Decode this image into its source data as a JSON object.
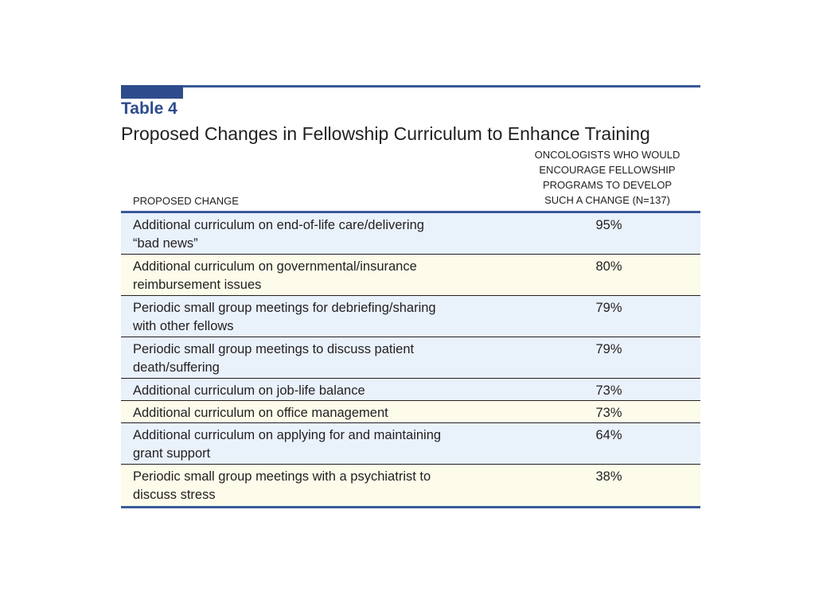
{
  "table": {
    "number": "Table 4",
    "title": "Proposed Changes in Fellowship Curriculum to Enhance Training",
    "columns": {
      "change": "PROPOSED CHANGE",
      "percent_lines": [
        "ONCOLOGISTS WHO WOULD",
        "ENCOURAGE FELLOWSHIP",
        "PROGRAMS TO DEVELOP",
        "SUCH A CHANGE (N=137)"
      ]
    },
    "rows": [
      {
        "change_lines": [
          "Additional curriculum on end-of-life care/delivering",
          "“bad news”"
        ],
        "percent": "95%"
      },
      {
        "change_lines": [
          "Additional curriculum on governmental/insurance",
          "reimbursement issues"
        ],
        "percent": "80%"
      },
      {
        "change_lines": [
          "Periodic small group meetings for debriefing/sharing",
          "with other fellows"
        ],
        "percent": "79%"
      },
      {
        "change_lines": [
          "Periodic small group meetings to discuss patient",
          "death/suffering"
        ],
        "percent": "79%"
      },
      {
        "change_lines": [
          "Additional curriculum on job-life balance"
        ],
        "percent": "73%"
      },
      {
        "change_lines": [
          "Additional curriculum on office management"
        ],
        "percent": "73%"
      },
      {
        "change_lines": [
          "Additional curriculum on applying for and maintaining",
          "grant support"
        ],
        "percent": "64%"
      },
      {
        "change_lines": [
          "Periodic small group meetings with a psychiatrist to",
          "discuss stress"
        ],
        "percent": "38%"
      }
    ]
  },
  "colors": {
    "accent": "#2e4c8c",
    "row_blue": "#e9f1fb",
    "row_cream": "#fdfbea"
  }
}
